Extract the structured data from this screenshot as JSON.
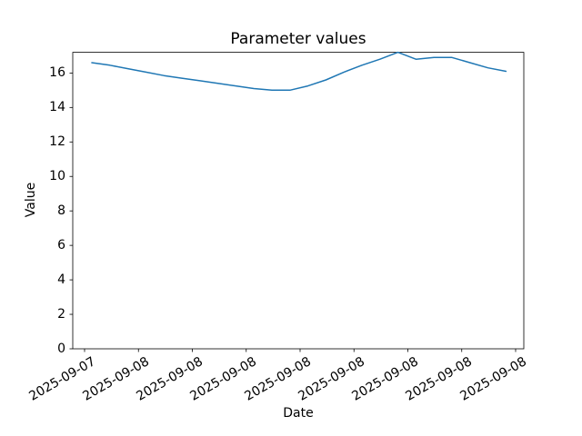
{
  "chart_data": {
    "type": "line",
    "title": "Parameter values",
    "xlabel": "Date",
    "ylabel": "Value",
    "background_color": "#ffffff",
    "axes_color": "#000000",
    "grid": false,
    "legend": false,
    "ylim": [
      0,
      17.2
    ],
    "y_tick_labels": [
      "0",
      "2",
      "4",
      "6",
      "8",
      "10",
      "12",
      "14",
      "16"
    ],
    "y_tick_values": [
      0,
      2,
      4,
      6,
      8,
      10,
      12,
      14,
      16
    ],
    "x_tick_labels": [
      "2025-09-07",
      "2025-09-08",
      "2025-09-08",
      "2025-09-08",
      "2025-09-08",
      "2025-09-08",
      "2025-09-08",
      "2025-09-08",
      "2025-09-08"
    ],
    "series": [
      {
        "color": "#1f77b4",
        "values": [
          16.6,
          16.45,
          16.25,
          16.05,
          15.85,
          15.7,
          15.55,
          15.4,
          15.25,
          15.1,
          15.0,
          15.0,
          15.25,
          15.6,
          16.05,
          16.45,
          16.8,
          17.2,
          16.8,
          16.9,
          16.9,
          16.6,
          16.3,
          16.1
        ]
      }
    ]
  }
}
